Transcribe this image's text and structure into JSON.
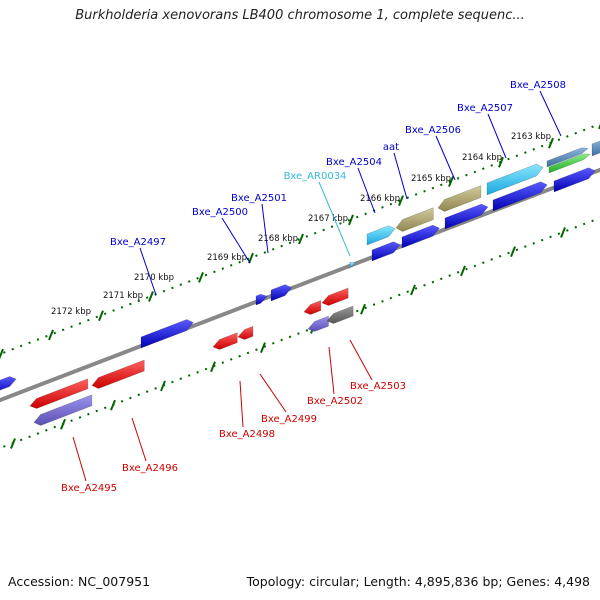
{
  "title": "Burkholderia xenovorans LB400 chromosome 1, complete sequenc...",
  "footer": {
    "accession": "Accession: NC_007951",
    "summary": "Topology: circular; Length: 4,895,836 bp; Genes: 4,498"
  },
  "colors": {
    "forward_label": "#0000cc",
    "reverse_label": "#cc0000",
    "rna_label": "#33bbdd",
    "backbone": "#888888",
    "tick": "#006600"
  },
  "ticks": [
    {
      "label": "2163 kbp"
    },
    {
      "label": "2164 kbp"
    },
    {
      "label": "2165 kbp"
    },
    {
      "label": "2166 kbp"
    },
    {
      "label": "2167 kbp"
    },
    {
      "label": "2168 kbp"
    },
    {
      "label": "2169 kbp"
    },
    {
      "label": "2170 kbp"
    },
    {
      "label": "2171 kbp"
    },
    {
      "label": "2172 kbp"
    }
  ],
  "forward_genes": [
    {
      "name": "Bxe_A2508"
    },
    {
      "name": "Bxe_A2507"
    },
    {
      "name": "Bxe_A2506"
    },
    {
      "name": "aat"
    },
    {
      "name": "Bxe_A2504"
    },
    {
      "name": "Bxe_AR0034"
    },
    {
      "name": "Bxe_A2501"
    },
    {
      "name": "Bxe_A2500"
    },
    {
      "name": "Bxe_A2497"
    }
  ],
  "reverse_genes": [
    {
      "name": "Bxe_A2503"
    },
    {
      "name": "Bxe_A2502"
    },
    {
      "name": "Bxe_A2499"
    },
    {
      "name": "Bxe_A2498"
    },
    {
      "name": "Bxe_A2496"
    },
    {
      "name": "Bxe_A2495"
    }
  ]
}
